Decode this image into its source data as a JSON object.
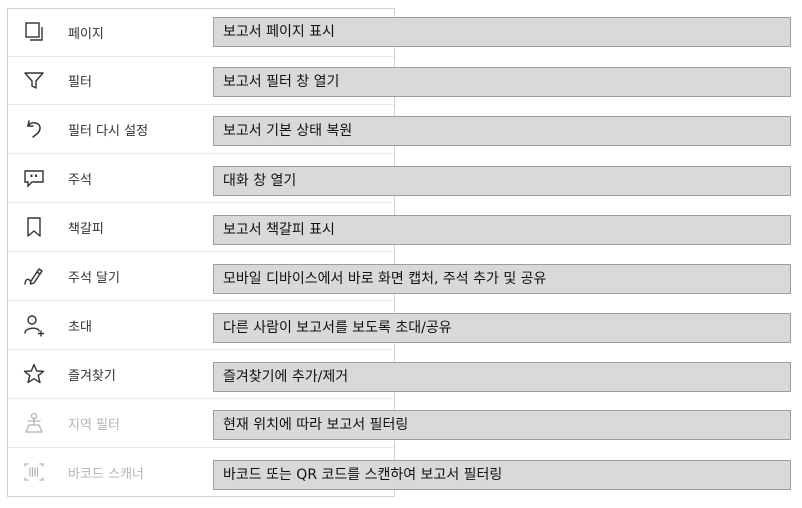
{
  "menu": {
    "items": [
      {
        "label": "페이지",
        "icon": "pages-icon",
        "disabled": false
      },
      {
        "label": "필터",
        "icon": "filter-icon",
        "disabled": false
      },
      {
        "label": "필터 다시 설정",
        "icon": "reset-filter-icon",
        "disabled": false
      },
      {
        "label": "주석",
        "icon": "comment-icon",
        "disabled": false
      },
      {
        "label": "책갈피",
        "icon": "bookmark-icon",
        "disabled": false
      },
      {
        "label": "주석 달기",
        "icon": "annotate-pen-icon",
        "disabled": false
      },
      {
        "label": "초대",
        "icon": "invite-person-icon",
        "disabled": false
      },
      {
        "label": "즐겨찾기",
        "icon": "star-icon",
        "disabled": false
      },
      {
        "label": "지역 필터",
        "icon": "geo-filter-icon",
        "disabled": true
      },
      {
        "label": "바코드 스캐너",
        "icon": "barcode-scanner-icon",
        "disabled": true
      }
    ]
  },
  "callouts": [
    "보고서 페이지 표시",
    "보고서 필터 창 열기",
    "보고서 기본 상태 복원",
    "대화 창 열기",
    "보고서 책갈피 표시",
    "모바일 디바이스에서 바로 화면 캡처, 주석 추가 및 공유",
    "다른 사람이 보고서를 보도록 초대/공유",
    "즐겨찾기에 추가/제거",
    "현재 위치에 따라 보고서 필터링",
    "바코드 또는 QR 코드를 스캔하여 보고서 필터링"
  ],
  "colors": {
    "callout_bg": "#d9d9d9",
    "callout_border": "#9e9e9e",
    "disabled_text": "#b3b3b3"
  }
}
